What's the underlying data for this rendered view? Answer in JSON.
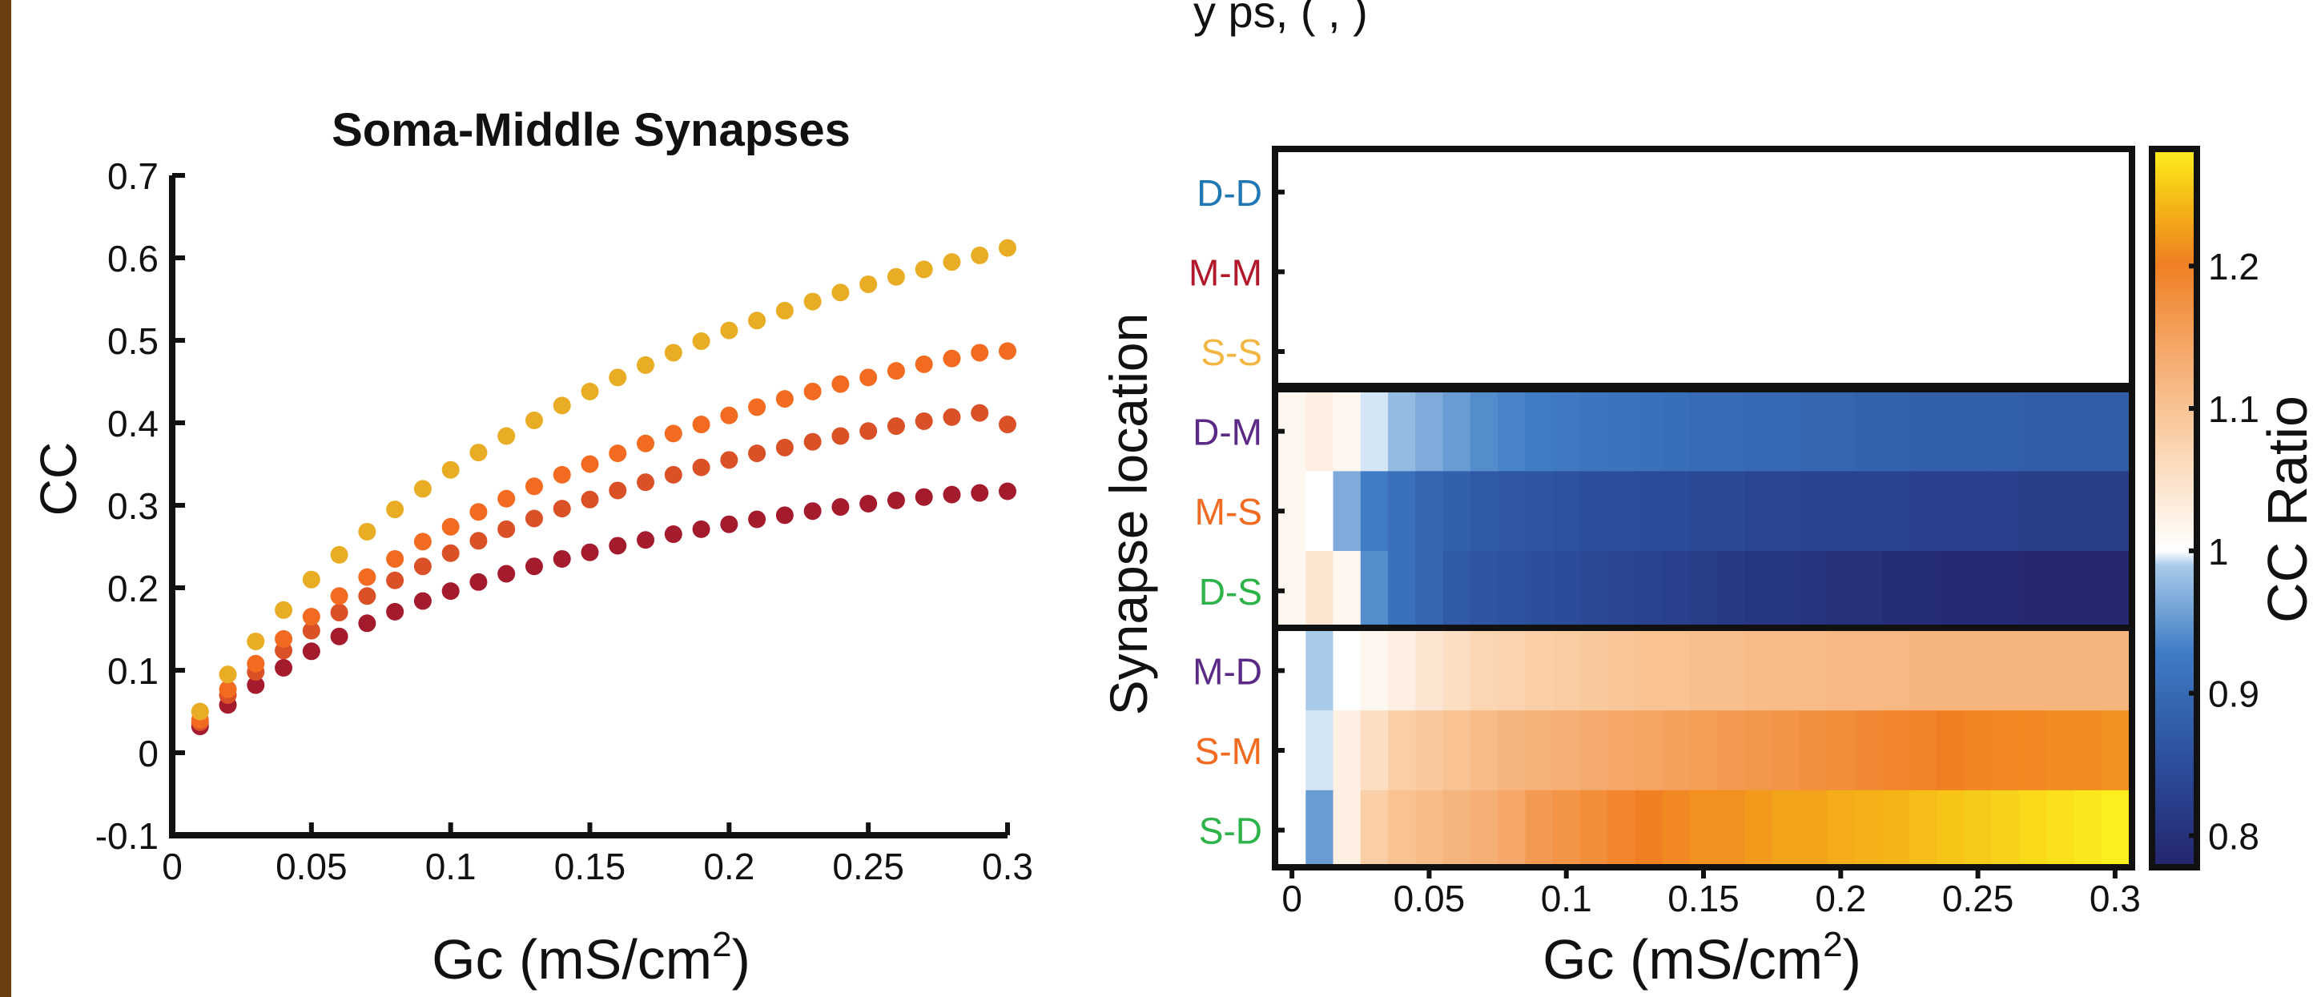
{
  "page": {
    "cut_off_header": "y    ps,                          (          ,                  )"
  },
  "left_chart": {
    "title": "Soma-Middle Synapses",
    "ylabel": "CC",
    "xlabel_main": "Gc (mS/cm",
    "xlabel_sup": "2",
    "xlabel_end": ")",
    "xticks": [
      "0",
      "0.05",
      "0.1",
      "0.15",
      "0.2",
      "0.25",
      "0.3"
    ],
    "yticks": [
      "-0.1",
      "0",
      "0.1",
      "0.2",
      "0.3",
      "0.4",
      "0.5",
      "0.6",
      "0.7"
    ]
  },
  "right_chart": {
    "ylabel": "Synapse location",
    "xlabel_main": "Gc (mS/cm",
    "xlabel_sup": "2",
    "xlabel_end": ")",
    "xticks": [
      "0",
      "0.05",
      "0.1",
      "0.15",
      "0.2",
      "0.25",
      "0.3"
    ],
    "row_labels": [
      "D-D",
      "M-M",
      "S-S",
      "D-M",
      "M-S",
      "D-S",
      "M-D",
      "S-M",
      "S-D"
    ],
    "row_label_colors": [
      "#1f77b4",
      "#b2182b",
      "#f4b642",
      "#5b2a86",
      "#f26b21",
      "#2db34a",
      "#5b2a86",
      "#f26b21",
      "#2db34a"
    ],
    "colorbar_label": "CC Ratio",
    "colorbar_ticks": [
      "0.8",
      "0.9",
      "1",
      "1.1",
      "1.2"
    ]
  },
  "chart_data": [
    {
      "type": "scatter",
      "title": "Soma-Middle Synapses",
      "xlabel": "Gc (mS/cm2)",
      "ylabel": "CC",
      "xlim": [
        0,
        0.3
      ],
      "ylim": [
        -0.1,
        0.7
      ],
      "x": [
        0.01,
        0.02,
        0.03,
        0.04,
        0.05,
        0.06,
        0.07,
        0.08,
        0.09,
        0.1,
        0.11,
        0.12,
        0.13,
        0.14,
        0.15,
        0.16,
        0.17,
        0.18,
        0.19,
        0.2,
        0.21,
        0.22,
        0.23,
        0.24,
        0.25,
        0.26,
        0.27,
        0.28,
        0.29,
        0.3
      ],
      "series": [
        {
          "color": "#e8ad24",
          "values": [
            0.05,
            0.095,
            0.135,
            0.173,
            0.21,
            0.24,
            0.268,
            0.295,
            0.32,
            0.343,
            0.364,
            0.384,
            0.403,
            0.421,
            0.438,
            0.455,
            0.47,
            0.485,
            0.499,
            0.512,
            0.524,
            0.536,
            0.547,
            0.558,
            0.568,
            0.577,
            0.586,
            0.595,
            0.603,
            0.612
          ]
        },
        {
          "color": "#f26b21",
          "values": [
            0.04,
            0.077,
            0.108,
            0.138,
            0.165,
            0.19,
            0.213,
            0.235,
            0.256,
            0.274,
            0.292,
            0.308,
            0.323,
            0.337,
            0.35,
            0.363,
            0.375,
            0.387,
            0.398,
            0.409,
            0.419,
            0.429,
            0.438,
            0.447,
            0.455,
            0.463,
            0.471,
            0.478,
            0.485,
            0.487
          ]
        },
        {
          "color": "#db5127",
          "values": [
            0.037,
            0.07,
            0.098,
            0.124,
            0.148,
            0.17,
            0.19,
            0.209,
            0.226,
            0.242,
            0.257,
            0.271,
            0.284,
            0.296,
            0.307,
            0.318,
            0.328,
            0.337,
            0.346,
            0.355,
            0.363,
            0.37,
            0.377,
            0.384,
            0.39,
            0.396,
            0.402,
            0.407,
            0.412,
            0.398
          ]
        },
        {
          "color": "#a51b2e",
          "values": [
            0.032,
            0.058,
            0.082,
            0.103,
            0.123,
            0.141,
            0.157,
            0.171,
            0.184,
            0.196,
            0.207,
            0.217,
            0.226,
            0.235,
            0.243,
            0.251,
            0.258,
            0.265,
            0.271,
            0.277,
            0.283,
            0.288,
            0.293,
            0.298,
            0.302,
            0.306,
            0.31,
            0.313,
            0.315,
            0.317
          ]
        }
      ]
    },
    {
      "type": "heatmap",
      "xlabel": "Gc (mS/cm2)",
      "ylabel": "Synapse location",
      "xlim": [
        -0.005,
        0.305
      ],
      "x": [
        0,
        0.01,
        0.02,
        0.03,
        0.04,
        0.05,
        0.06,
        0.07,
        0.08,
        0.09,
        0.1,
        0.11,
        0.12,
        0.13,
        0.14,
        0.15,
        0.16,
        0.17,
        0.18,
        0.19,
        0.2,
        0.21,
        0.22,
        0.23,
        0.24,
        0.25,
        0.26,
        0.27,
        0.28,
        0.29,
        0.3
      ],
      "rows": [
        "D-D",
        "M-M",
        "S-S",
        "D-M",
        "M-S",
        "D-S",
        "M-D",
        "S-M",
        "S-D"
      ],
      "colorbar_range": [
        0.78,
        1.28
      ],
      "values": [
        [
          1.0,
          1.0,
          1.0,
          1.0,
          1.0,
          1.0,
          1.0,
          1.0,
          1.0,
          1.0,
          1.0,
          1.0,
          1.0,
          1.0,
          1.0,
          1.0,
          1.0,
          1.0,
          1.0,
          1.0,
          1.0,
          1.0,
          1.0,
          1.0,
          1.0,
          1.0,
          1.0,
          1.0,
          1.0,
          1.0,
          1.0
        ],
        [
          1.0,
          1.0,
          1.0,
          1.0,
          1.0,
          1.0,
          1.0,
          1.0,
          1.0,
          1.0,
          1.0,
          1.0,
          1.0,
          1.0,
          1.0,
          1.0,
          1.0,
          1.0,
          1.0,
          1.0,
          1.0,
          1.0,
          1.0,
          1.0,
          1.0,
          1.0,
          1.0,
          1.0,
          1.0,
          1.0,
          1.0
        ],
        [
          1.0,
          1.0,
          1.0,
          1.0,
          1.0,
          1.0,
          1.0,
          1.0,
          1.0,
          1.0,
          1.0,
          1.0,
          1.0,
          1.0,
          1.0,
          1.0,
          1.0,
          1.0,
          1.0,
          1.0,
          1.0,
          1.0,
          1.0,
          1.0,
          1.0,
          1.0,
          1.0,
          1.0,
          1.0,
          1.0,
          1.0
        ],
        [
          1.01,
          1.02,
          1.01,
          0.99,
          0.97,
          0.96,
          0.95,
          0.94,
          0.935,
          0.93,
          0.925,
          0.92,
          0.915,
          0.91,
          0.905,
          0.9,
          0.9,
          0.895,
          0.895,
          0.89,
          0.89,
          0.885,
          0.885,
          0.88,
          0.88,
          0.88,
          0.88,
          0.875,
          0.875,
          0.875,
          0.875
        ],
        [
          1.01,
          1.0,
          0.96,
          0.93,
          0.91,
          0.89,
          0.88,
          0.87,
          0.865,
          0.86,
          0.855,
          0.85,
          0.85,
          0.845,
          0.845,
          0.84,
          0.84,
          0.835,
          0.835,
          0.83,
          0.83,
          0.83,
          0.83,
          0.825,
          0.825,
          0.825,
          0.825,
          0.82,
          0.82,
          0.82,
          0.82
        ],
        [
          1.01,
          1.03,
          1.01,
          0.94,
          0.91,
          0.89,
          0.87,
          0.86,
          0.855,
          0.85,
          0.845,
          0.84,
          0.835,
          0.83,
          0.825,
          0.82,
          0.815,
          0.81,
          0.81,
          0.805,
          0.8,
          0.8,
          0.795,
          0.795,
          0.79,
          0.79,
          0.79,
          0.785,
          0.785,
          0.785,
          0.785
        ],
        [
          1.0,
          0.98,
          1.0,
          1.01,
          1.02,
          1.03,
          1.04,
          1.05,
          1.055,
          1.06,
          1.065,
          1.07,
          1.075,
          1.08,
          1.08,
          1.085,
          1.085,
          1.09,
          1.09,
          1.09,
          1.095,
          1.095,
          1.095,
          1.1,
          1.1,
          1.1,
          1.1,
          1.1,
          1.1,
          1.1,
          1.1
        ],
        [
          1.0,
          0.99,
          1.02,
          1.04,
          1.06,
          1.07,
          1.08,
          1.09,
          1.1,
          1.105,
          1.11,
          1.115,
          1.12,
          1.125,
          1.13,
          1.135,
          1.14,
          1.145,
          1.15,
          1.155,
          1.16,
          1.165,
          1.17,
          1.175,
          1.18,
          1.185,
          1.19,
          1.19,
          1.195,
          1.195,
          1.2
        ],
        [
          1.0,
          0.95,
          1.02,
          1.06,
          1.08,
          1.09,
          1.1,
          1.11,
          1.12,
          1.14,
          1.15,
          1.16,
          1.17,
          1.18,
          1.19,
          1.2,
          1.2,
          1.21,
          1.22,
          1.22,
          1.23,
          1.235,
          1.24,
          1.245,
          1.25,
          1.255,
          1.26,
          1.265,
          1.27,
          1.275,
          1.28
        ]
      ]
    }
  ]
}
